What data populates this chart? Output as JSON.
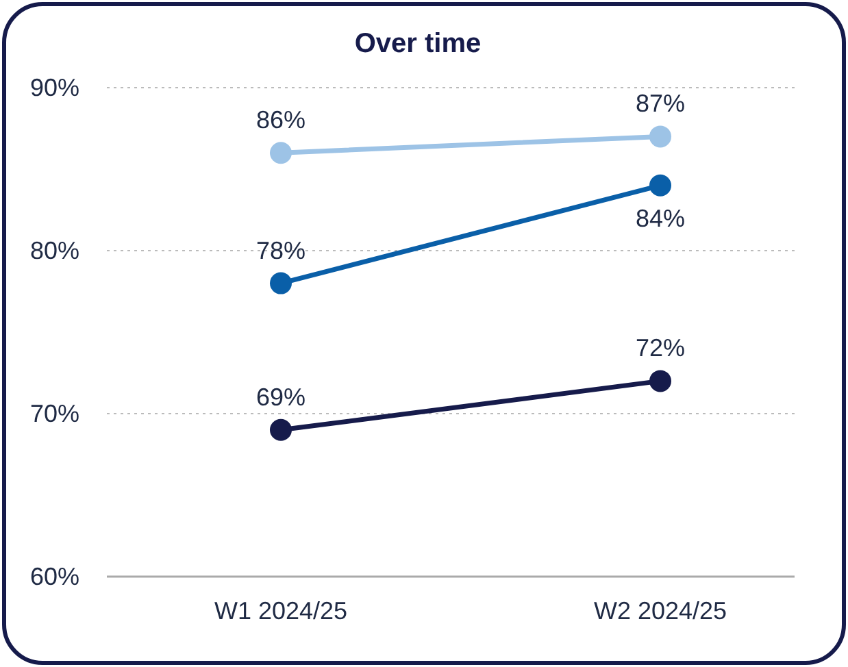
{
  "chart_data": {
    "type": "line",
    "title": "Over time",
    "categories": [
      "W1 2024/25",
      "W2 2024/25"
    ],
    "series": [
      {
        "color": "#9dc3e6",
        "values": [
          86,
          87
        ],
        "value_labels": [
          "86%",
          "87%"
        ]
      },
      {
        "color": "#0a5fa8",
        "values": [
          78,
          84
        ],
        "value_labels": [
          "78%",
          "84%"
        ]
      },
      {
        "color": "#161b4b",
        "values": [
          69,
          72
        ],
        "value_labels": [
          "69%",
          "72%"
        ]
      }
    ],
    "ylim": [
      60,
      90
    ],
    "yticks": [
      {
        "value": 60,
        "label": "60%"
      },
      {
        "value": 70,
        "label": "70%"
      },
      {
        "value": 80,
        "label": "80%"
      },
      {
        "value": 90,
        "label": "90%"
      }
    ],
    "grid": "y",
    "marker": "circle",
    "line_style": "solid"
  }
}
